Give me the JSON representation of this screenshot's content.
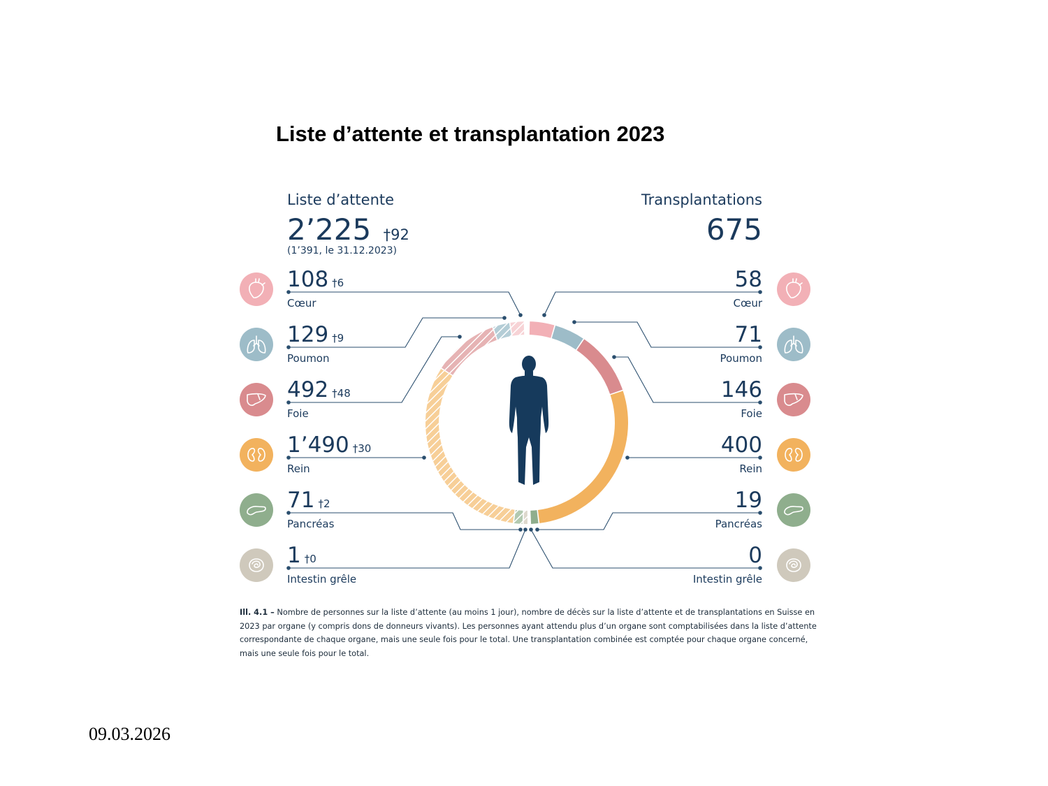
{
  "slide": {
    "title": "Liste d’attente et transplantation 2023",
    "date": "09.03.2026"
  },
  "colors": {
    "navy": "#1b3a5c",
    "line": "#2a4e6e",
    "coeur": "#f2b0b6",
    "poumon": "#9dbcc8",
    "foie": "#d98b8e",
    "rein": "#f2b25e",
    "pancreas": "#8fae8d",
    "intestin": "#cfc9bc",
    "body": "#163a5c"
  },
  "icons": {
    "coeur": "heart-icon",
    "poumon": "lungs-icon",
    "foie": "liver-icon",
    "rein": "kidney-icon",
    "pancreas": "pancreas-icon",
    "intestin": "intestine-icon",
    "center": "human-body-icon"
  },
  "left_header": {
    "label": "Liste d’attente",
    "total": "2’225",
    "total_deaths": "†92",
    "note": "(1’391, le 31.12.2023)"
  },
  "right_header": {
    "label": "Transplantations",
    "total": "675"
  },
  "chart_data": {
    "type": "pie",
    "title": "Liste d’attente et transplantation 2023",
    "note": "Donut chart: left half (hatched) = waiting list, right half (solid) = transplantations",
    "categories": [
      "Cœur",
      "Poumon",
      "Foie",
      "Rein",
      "Pancréas",
      "Intestin grêle"
    ],
    "series": [
      {
        "name": "Liste d’attente",
        "total": 2225,
        "total_deaths": 92,
        "values": [
          108,
          129,
          492,
          1490,
          71,
          1
        ],
        "deaths": [
          6,
          9,
          48,
          30,
          2,
          0
        ],
        "value_labels": [
          "108",
          "129",
          "492",
          "1’490",
          "71",
          "1"
        ],
        "death_labels": [
          "†6",
          "†9",
          "†48",
          "†30",
          "†2",
          "†0"
        ]
      },
      {
        "name": "Transplantations",
        "total": 675,
        "values": [
          58,
          71,
          146,
          400,
          19,
          0
        ],
        "value_labels": [
          "58",
          "71",
          "146",
          "400",
          "19",
          "0"
        ]
      }
    ]
  },
  "caption": {
    "ref": "Ill. 4.1 –",
    "text": " Nombre de personnes sur la liste d’attente (au moins 1 jour), nombre de décès sur la liste d’attente et de transplantations en Suisse en 2023 par organe (y compris dons de donneurs vivants). Les personnes ayant attendu plus d’un organe sont comptabilisées dans la liste d’attente correspondante de chaque organe, mais une seule fois pour le total. Une transplantation combinée est comptée pour chaque organe concerné, mais une seule fois pour le total."
  }
}
